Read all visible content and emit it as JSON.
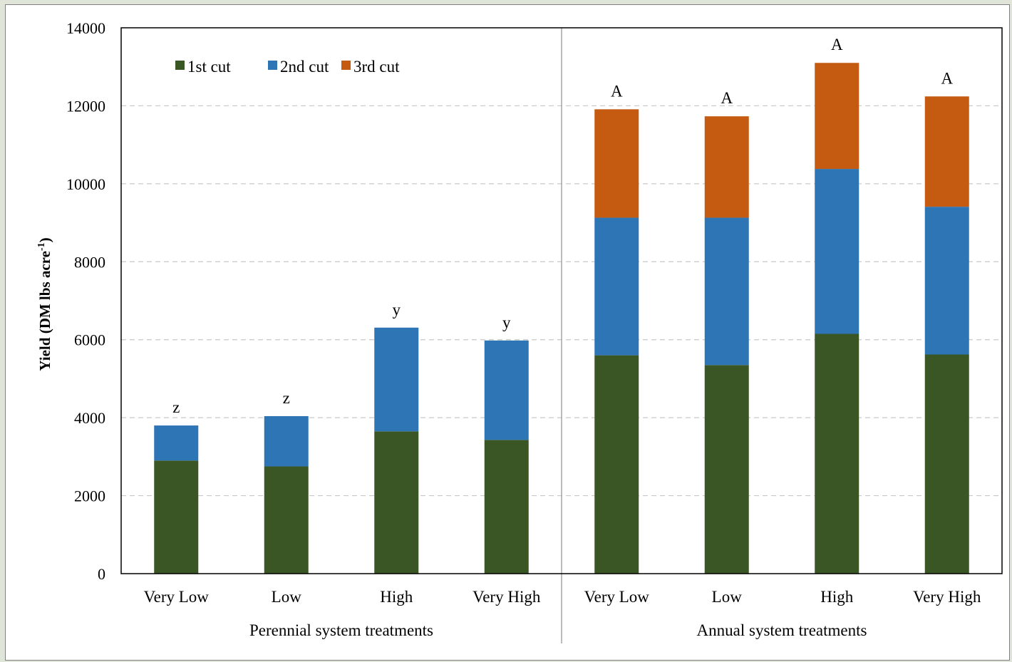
{
  "chart_data": {
    "type": "bar",
    "stacked": true,
    "ylabel": "Yield (DM lbs acre",
    "ylabel_sup": "-1",
    "ylabel_close": ")",
    "ylim": [
      0,
      14000
    ],
    "yticks": [
      0,
      2000,
      4000,
      6000,
      8000,
      10000,
      12000,
      14000
    ],
    "grid": true,
    "legend_position": "top-left",
    "categories": [
      "Very Low",
      "Low",
      "High",
      "Very High",
      "Very Low",
      "Low",
      "High",
      "Very High"
    ],
    "groups": [
      {
        "label": "Perennial system treatments",
        "categories": [
          0,
          1,
          2,
          3
        ]
      },
      {
        "label": "Annual system treatments",
        "categories": [
          4,
          5,
          6,
          7
        ]
      }
    ],
    "series": [
      {
        "name": "1st cut",
        "color": "#3a5624",
        "values": [
          2900,
          2750,
          3650,
          3430,
          5600,
          5350,
          6150,
          5620
        ]
      },
      {
        "name": "2nd cut",
        "color": "#2e75b6",
        "values": [
          900,
          1290,
          2660,
          2550,
          3530,
          3780,
          4230,
          3790
        ]
      },
      {
        "name": "3rd cut",
        "color": "#c55a11",
        "values": [
          0,
          0,
          0,
          0,
          2780,
          2600,
          2720,
          2830
        ]
      }
    ],
    "significance_letters": [
      "z",
      "z",
      "y",
      "y",
      "A",
      "A",
      "A",
      "A"
    ]
  }
}
